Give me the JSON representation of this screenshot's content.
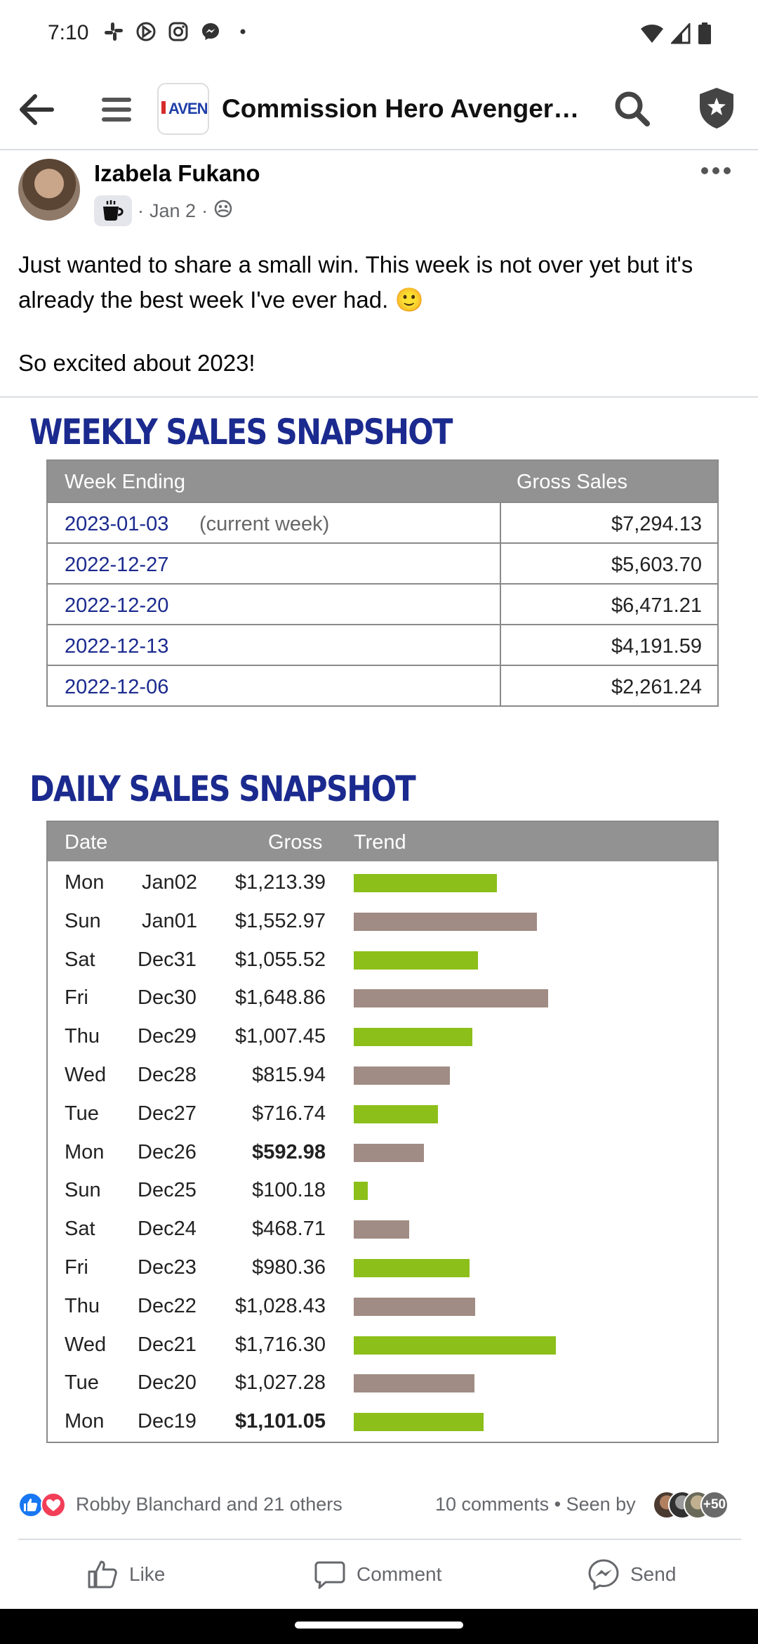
{
  "status_bar": {
    "time": "7:10",
    "notification_icons": [
      "slack-icon",
      "nav-arrow-icon",
      "instagram-icon",
      "messenger-icon",
      "dot-icon"
    ],
    "right_icons": [
      "wifi-icon",
      "signal-icon",
      "battery-icon"
    ]
  },
  "app_bar": {
    "group_title": "Commission Hero Avengers…",
    "group_logo_text": "AVENG"
  },
  "post": {
    "author": "Izabela Fukano",
    "date": "Jan 2",
    "separator": "·",
    "text_line1": "Just wanted to share a small win. This week is not over yet but it's already the best week I've ever had. 🙂",
    "text_line2": "So excited about 2023!"
  },
  "weekly": {
    "title": "WEEKLY SALES SNAPSHOT",
    "headers": [
      "Week Ending",
      "Gross Sales"
    ],
    "rows": [
      {
        "date": "2023-01-03",
        "note": "(current week)",
        "amount": "$7,294.13"
      },
      {
        "date": "2022-12-27",
        "note": "",
        "amount": "$5,603.70"
      },
      {
        "date": "2022-12-20",
        "note": "",
        "amount": "$6,471.21"
      },
      {
        "date": "2022-12-13",
        "note": "",
        "amount": "$4,191.59"
      },
      {
        "date": "2022-12-06",
        "note": "",
        "amount": "$2,261.24"
      }
    ]
  },
  "daily": {
    "title": "DAILY SALES SNAPSHOT",
    "headers": [
      "Date",
      "Gross",
      "Trend"
    ],
    "colors": {
      "green": "#8cbf1a",
      "taupe": "#a08c84"
    },
    "rows": [
      {
        "day": "Mon",
        "date": "Jan02",
        "gross": "$1,213.39",
        "value": 1213.39,
        "color": "green",
        "bold": false
      },
      {
        "day": "Sun",
        "date": "Jan01",
        "gross": "$1,552.97",
        "value": 1552.97,
        "color": "taupe",
        "bold": false
      },
      {
        "day": "Sat",
        "date": "Dec31",
        "gross": "$1,055.52",
        "value": 1055.52,
        "color": "green",
        "bold": false
      },
      {
        "day": "Fri",
        "date": "Dec30",
        "gross": "$1,648.86",
        "value": 1648.86,
        "color": "taupe",
        "bold": false
      },
      {
        "day": "Thu",
        "date": "Dec29",
        "gross": "$1,007.45",
        "value": 1007.45,
        "color": "green",
        "bold": false
      },
      {
        "day": "Wed",
        "date": "Dec28",
        "gross": "$815.94",
        "value": 815.94,
        "color": "taupe",
        "bold": false
      },
      {
        "day": "Tue",
        "date": "Dec27",
        "gross": "$716.74",
        "value": 716.74,
        "color": "green",
        "bold": false
      },
      {
        "day": "Mon",
        "date": "Dec26",
        "gross": "$592.98",
        "value": 592.98,
        "color": "taupe",
        "bold": true
      },
      {
        "day": "Sun",
        "date": "Dec25",
        "gross": "$100.18",
        "value": 100.18,
        "color": "green",
        "bold": false
      },
      {
        "day": "Sat",
        "date": "Dec24",
        "gross": "$468.71",
        "value": 468.71,
        "color": "taupe",
        "bold": false
      },
      {
        "day": "Fri",
        "date": "Dec23",
        "gross": "$980.36",
        "value": 980.36,
        "color": "green",
        "bold": false
      },
      {
        "day": "Thu",
        "date": "Dec22",
        "gross": "$1,028.43",
        "value": 1028.43,
        "color": "taupe",
        "bold": false
      },
      {
        "day": "Wed",
        "date": "Dec21",
        "gross": "$1,716.30",
        "value": 1716.3,
        "color": "green",
        "bold": false
      },
      {
        "day": "Tue",
        "date": "Dec20",
        "gross": "$1,027.28",
        "value": 1027.28,
        "color": "taupe",
        "bold": false
      },
      {
        "day": "Mon",
        "date": "Dec19",
        "gross": "$1,101.05",
        "value": 1101.05,
        "color": "green",
        "bold": true
      }
    ]
  },
  "reactions": {
    "icons": [
      "like-reaction-icon",
      "love-reaction-icon"
    ],
    "text": "Robby Blanchard and 21 others",
    "comments": "10 comments",
    "seen_by": "Seen by",
    "seen_extra": "+50"
  },
  "actions": {
    "like": "Like",
    "comment": "Comment",
    "send": "Send"
  },
  "colors": {
    "facebook_blue": "#1877f2",
    "love_red": "#f33e58",
    "snapshot_title": "#1b2a8e",
    "header_gray": "#929292"
  }
}
